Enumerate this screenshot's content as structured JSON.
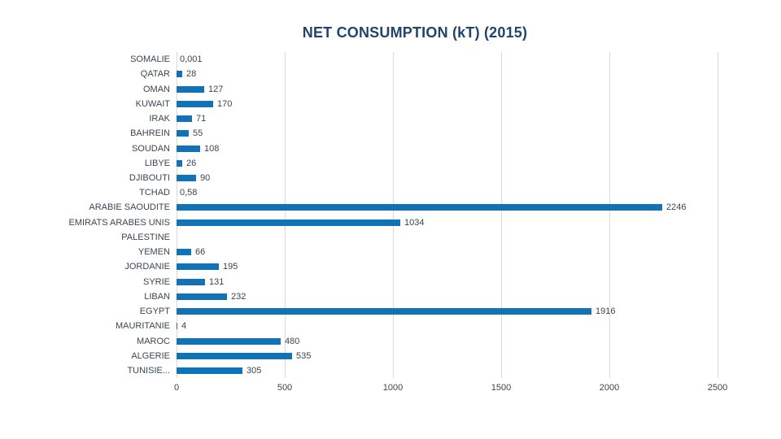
{
  "colors": {
    "bar": "#1272B6",
    "title": "#20456B",
    "label": "#3B4551",
    "gridline": "#D9D9D9",
    "background": "#FFFFFF"
  },
  "chart_data": {
    "type": "bar",
    "orientation": "horizontal",
    "title": "NET CONSUMPTION (kT) (2015)",
    "xlabel": "",
    "ylabel": "",
    "xlim": [
      0,
      2500
    ],
    "x_ticks": [
      "0",
      "500",
      "1000",
      "1500",
      "2000",
      "2500"
    ],
    "x_tick_values": [
      0,
      500,
      1000,
      1500,
      2000,
      2500
    ],
    "grid": "vertical",
    "legend": "none",
    "categories": [
      "SOMALIE",
      "QATAR",
      "OMAN",
      "KUWAIT",
      "IRAK",
      "BAHREIN",
      "SOUDAN",
      "LIBYE",
      "DJIBOUTI",
      "TCHAD",
      "ARABIE SAOUDITE",
      "EMIRATS ARABES UNIS",
      "PALESTINE",
      "YEMEN",
      "JORDANIE",
      "SYRIE",
      "LIBAN",
      "EGYPT",
      "MAURITANIE",
      "MAROC",
      "ALGERIE",
      "TUNISIE..."
    ],
    "values": [
      0.001,
      28,
      127,
      170,
      71,
      55,
      108,
      26,
      90,
      0.58,
      2246,
      1034,
      null,
      66,
      195,
      131,
      232,
      1916,
      4,
      480,
      535,
      305
    ],
    "value_labels": [
      "0,001",
      "28",
      "127",
      "170",
      "71",
      "55",
      "108",
      "26",
      "90",
      "0,58",
      "2246",
      "1034",
      "",
      "66",
      "195",
      "131",
      "232",
      "1916",
      "4",
      "480",
      "535",
      "305"
    ]
  }
}
